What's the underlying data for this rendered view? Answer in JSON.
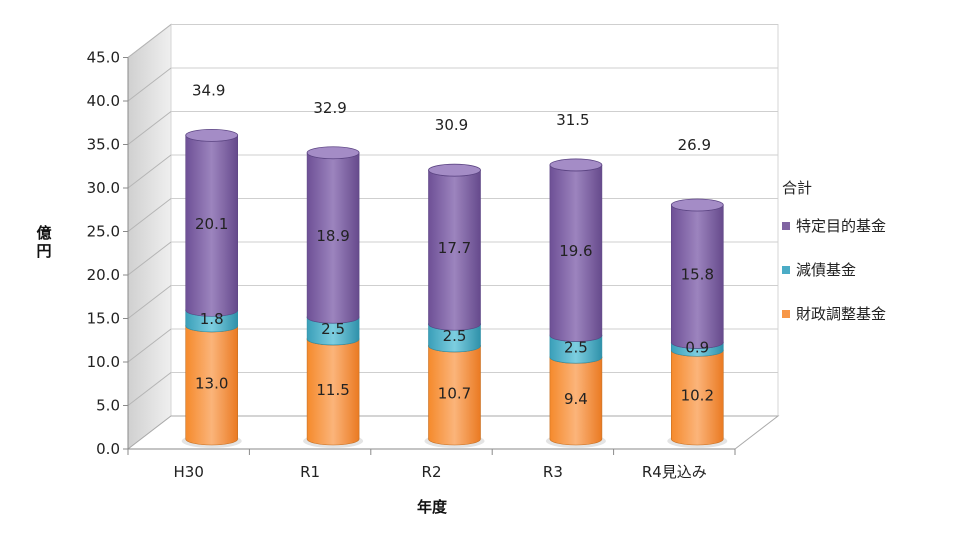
{
  "chart_data": {
    "type": "bar",
    "stacked": true,
    "style": "3d-cylinder",
    "categories": [
      "H30",
      "R1",
      "R2",
      "R3",
      "R4見込み"
    ],
    "series": [
      {
        "name": "財政調整基金",
        "color": "#F79646",
        "values": [
          13.0,
          11.5,
          10.7,
          9.4,
          10.2
        ]
      },
      {
        "name": "減債基金",
        "color": "#4BACC6",
        "values": [
          1.8,
          2.5,
          2.5,
          2.5,
          0.9
        ]
      },
      {
        "name": "特定目的基金",
        "color": "#8064A2",
        "values": [
          20.1,
          18.9,
          17.7,
          19.6,
          15.8
        ]
      }
    ],
    "totals": {
      "name": "合計",
      "values": [
        34.9,
        32.9,
        30.9,
        31.5,
        26.9
      ]
    },
    "xlabel": "年度",
    "ylabel": "億円",
    "ylim": [
      0,
      45
    ],
    "yticks": [
      "0.0",
      "5.0",
      "10.0",
      "15.0",
      "20.0",
      "25.0",
      "30.0",
      "35.0",
      "40.0",
      "45.0"
    ],
    "grid": true,
    "legend_position": "right"
  },
  "legend": {
    "title": "合計",
    "items": [
      {
        "label": "特定目的基金",
        "color": "#8064A2"
      },
      {
        "label": "減債基金",
        "color": "#4BACC6"
      },
      {
        "label": "財政調整基金",
        "color": "#F79646"
      }
    ]
  }
}
